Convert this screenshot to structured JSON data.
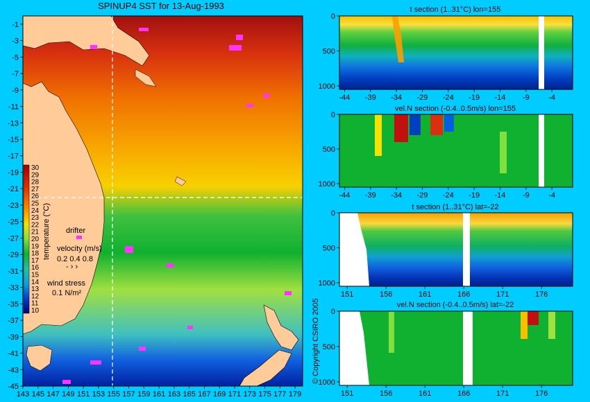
{
  "title": "SPINUP4 SST for 13-Aug-1993",
  "copyright": "© Copyright CSIRO 2005",
  "colors": {
    "background": "#00ccff",
    "land": "#ffcc99",
    "drifter": "#ff33ff",
    "crosshair": "#ffffff"
  },
  "map": {
    "lon_ticks": [
      "143",
      "145",
      "147",
      "149",
      "151",
      "153",
      "155",
      "157",
      "159",
      "161",
      "163",
      "165",
      "167",
      "169",
      "171",
      "173",
      "175",
      "177",
      "179"
    ],
    "lat_ticks": [
      "-1",
      "-3",
      "-5",
      "-7",
      "-9",
      "-11",
      "-13",
      "-15",
      "-17",
      "-19",
      "-21",
      "-23",
      "-25",
      "-27",
      "-29",
      "-31",
      "-33",
      "-35",
      "-37",
      "-39",
      "-41",
      "-43",
      "-45"
    ],
    "crosshair": {
      "lon": 155,
      "lat": -22
    }
  },
  "legend": {
    "colorbar_label": "temperature (°C)",
    "colorbar_ticks": [
      "30",
      "29",
      "28",
      "27",
      "26",
      "25",
      "24",
      "23",
      "22",
      "21",
      "20",
      "19",
      "18",
      "17",
      "16",
      "15",
      "14",
      "13",
      "12",
      "11",
      "10"
    ],
    "drifter_label": "drifter",
    "velocity_label": "velocity (m/s)",
    "velocity_values": "0.2 0.4 0.8",
    "wind_label": "wind stress",
    "wind_value": "0.1 N/m²"
  },
  "chart_data": [
    {
      "type": "heatmap",
      "title": "SPINUP4 SST for 13-Aug-1993",
      "xlim": [
        143,
        180
      ],
      "ylim": [
        -45,
        0
      ],
      "colorbar": {
        "label": "temperature (°C)",
        "range": [
          10,
          30
        ]
      }
    },
    {
      "type": "heatmap",
      "title": "t section (1..31°C) lon=155",
      "x_ticks": [
        "-44",
        "-39",
        "-34",
        "-29",
        "-24",
        "-19",
        "-14",
        "-9",
        "-4"
      ],
      "y_ticks": [
        "0",
        "500",
        "1000"
      ],
      "xlim": [
        -45,
        0
      ],
      "ylim": [
        1050,
        0
      ]
    },
    {
      "type": "heatmap",
      "title": "vel.N section (-0.4..0.5m/s) lon=155",
      "x_ticks": [
        "-44",
        "-39",
        "-34",
        "-29",
        "-24",
        "-19",
        "-14",
        "-9",
        "-4"
      ],
      "y_ticks": [
        "0",
        "500",
        "1000"
      ],
      "xlim": [
        -45,
        0
      ],
      "ylim": [
        1050,
        0
      ]
    },
    {
      "type": "heatmap",
      "title": "t section (1..31°C) lat=-22",
      "x_ticks": [
        "151",
        "156",
        "161",
        "166",
        "171",
        "176"
      ],
      "y_ticks": [
        "0",
        "500",
        "1000"
      ],
      "xlim": [
        150,
        180
      ],
      "ylim": [
        1050,
        0
      ]
    },
    {
      "type": "heatmap",
      "title": "vel.N section (-0.4..0.5m/s) lat=-22",
      "x_ticks": [
        "151",
        "156",
        "161",
        "166",
        "171",
        "176"
      ],
      "y_ticks": [
        "0",
        "500",
        "1000"
      ],
      "xlim": [
        150,
        180
      ],
      "ylim": [
        1050,
        0
      ]
    }
  ]
}
